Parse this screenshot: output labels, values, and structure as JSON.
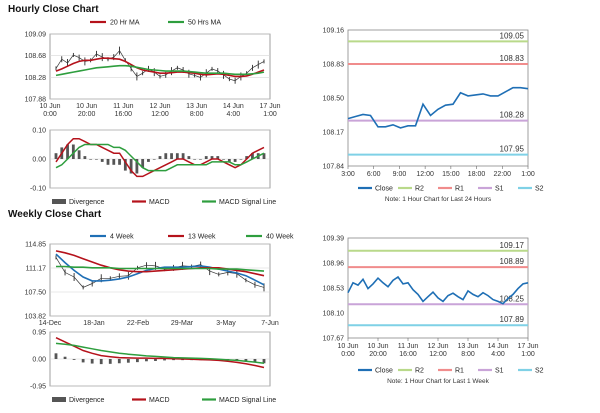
{
  "hourly_title": "Hourly Close Chart",
  "weekly_title": "Weekly Close Chart",
  "colors": {
    "green": "#2e9e3e",
    "red": "#b5121b",
    "blue": "#1f6fb5",
    "r2": "#b9d98a",
    "r1": "#f08c8c",
    "s1": "#c9a4d8",
    "s2": "#7fd1e6",
    "grey": "#777777",
    "dark": "#222222"
  },
  "chart_data": [
    {
      "id": "hourly-price",
      "type": "line",
      "title": "Hourly Close Chart",
      "legend": [
        "20 Hr MA",
        "50 Hrs MA"
      ],
      "yticks": [
        "109.09",
        "108.68",
        "108.28",
        "107.88"
      ],
      "ylim": [
        107.88,
        109.09
      ],
      "xticks": [
        "10 Jun\n0:00",
        "10 Jun\n20:00",
        "11 Jun\n16:00",
        "12 Jun\n12:00",
        "13 Jun\n8:00",
        "14 Jun\n4:00",
        "17 Jun\n1:00"
      ],
      "series": [
        {
          "name": "Close",
          "values": [
            108.45,
            108.62,
            108.55,
            108.7,
            108.65,
            108.58,
            108.6,
            108.72,
            108.66,
            108.62,
            108.66,
            108.78,
            108.6,
            108.45,
            108.3,
            108.36,
            108.44,
            108.38,
            108.3,
            108.33,
            108.4,
            108.46,
            108.42,
            108.35,
            108.32,
            108.28,
            108.36,
            108.44,
            108.4,
            108.33,
            108.25,
            108.22,
            108.3,
            108.36,
            108.46,
            108.52,
            108.58
          ]
        },
        {
          "name": "20 Hr MA",
          "values": [
            108.4,
            108.44,
            108.49,
            108.54,
            108.58,
            108.6,
            108.6,
            108.62,
            108.64,
            108.64,
            108.63,
            108.62,
            108.58,
            108.52,
            108.46,
            108.42,
            108.4,
            108.38,
            108.36,
            108.36,
            108.37,
            108.38,
            108.38,
            108.37,
            108.36,
            108.34,
            108.33,
            108.34,
            108.35,
            108.34,
            108.32,
            108.3,
            108.3,
            108.31,
            108.34,
            108.38,
            108.42
          ]
        },
        {
          "name": "50 Hrs MA",
          "values": [
            108.32,
            108.34,
            108.36,
            108.38,
            108.4,
            108.42,
            108.44,
            108.46,
            108.47,
            108.48,
            108.49,
            108.5,
            108.5,
            108.49,
            108.47,
            108.45,
            108.43,
            108.42,
            108.41,
            108.4,
            108.4,
            108.4,
            108.4,
            108.39,
            108.38,
            108.37,
            108.36,
            108.36,
            108.36,
            108.36,
            108.35,
            108.34,
            108.34,
            108.34,
            108.35,
            108.36,
            108.38
          ]
        }
      ]
    },
    {
      "id": "hourly-macd",
      "type": "line",
      "legend": [
        "Divergence",
        "MACD",
        "MACD Signal Line"
      ],
      "yticks": [
        "0.10",
        "0.00",
        "-0.10"
      ],
      "ylim": [
        -0.1,
        0.1
      ],
      "series": [
        {
          "name": "MACD",
          "values": [
            -0.01,
            0.02,
            0.05,
            0.07,
            0.07,
            0.06,
            0.05,
            0.05,
            0.04,
            0.03,
            0.02,
            0.02,
            -0.01,
            -0.04,
            -0.06,
            -0.06,
            -0.05,
            -0.04,
            -0.03,
            -0.02,
            -0.01,
            0.0,
            0.0,
            -0.01,
            -0.02,
            -0.02,
            -0.01,
            0.0,
            0.0,
            -0.01,
            -0.02,
            -0.03,
            -0.02,
            0.0,
            0.02,
            0.03,
            0.04
          ]
        },
        {
          "name": "MACD Signal Line",
          "values": [
            -0.03,
            -0.02,
            0.0,
            0.02,
            0.04,
            0.05,
            0.05,
            0.05,
            0.05,
            0.05,
            0.04,
            0.04,
            0.03,
            0.01,
            -0.01,
            -0.03,
            -0.04,
            -0.04,
            -0.04,
            -0.04,
            -0.03,
            -0.02,
            -0.02,
            -0.02,
            -0.02,
            -0.02,
            -0.02,
            -0.01,
            -0.01,
            -0.01,
            -0.01,
            -0.02,
            -0.02,
            -0.01,
            0.0,
            0.01,
            0.02
          ]
        }
      ]
    },
    {
      "id": "hourly-24h",
      "type": "line",
      "legend": [
        "Close",
        "R2",
        "R1",
        "S1",
        "S2"
      ],
      "note": "Note: 1 Hour Chart for Last 24 Hours",
      "yticks": [
        "109.16",
        "108.83",
        "108.50",
        "108.17",
        "107.84"
      ],
      "ylim": [
        107.84,
        109.16
      ],
      "xticks": [
        "3:00",
        "6:00",
        "9:00",
        "12:00",
        "15:00",
        "18:00",
        "22:00",
        "1:00"
      ],
      "levels": [
        {
          "name": "R2",
          "value": 109.05,
          "label": "109.05"
        },
        {
          "name": "R1",
          "value": 108.83,
          "label": "108.83"
        },
        {
          "name": "S1",
          "value": 108.28,
          "label": "108.28"
        },
        {
          "name": "S2",
          "value": 107.95,
          "label": "107.95"
        }
      ],
      "close": [
        108.3,
        108.32,
        108.34,
        108.33,
        108.22,
        108.22,
        108.24,
        108.21,
        108.23,
        108.23,
        108.44,
        108.33,
        108.39,
        108.43,
        108.44,
        108.55,
        108.52,
        108.53,
        108.54,
        108.52,
        108.52,
        108.56,
        108.6,
        108.6,
        108.59
      ]
    },
    {
      "id": "weekly-price",
      "type": "line",
      "title": "Weekly Close Chart",
      "legend": [
        "4 Week",
        "13 Week",
        "40 Week"
      ],
      "yticks": [
        "114.85",
        "111.17",
        "107.50",
        "103.82"
      ],
      "ylim": [
        103.82,
        114.85
      ],
      "xticks": [
        "14-Dec",
        "18-Jan",
        "22-Feb",
        "29-Mar",
        "3-May",
        "7-Jun"
      ],
      "series": [
        {
          "name": "Close",
          "values": [
            112.8,
            110.5,
            109.8,
            108.2,
            108.8,
            109.6,
            109.6,
            109.9,
            110.0,
            111.2,
            111.6,
            111.5,
            111.0,
            111.2,
            111.5,
            111.4,
            111.7,
            110.7,
            110.2,
            110.5,
            110.3,
            109.3,
            108.6,
            108.2
          ]
        },
        {
          "name": "4 Week",
          "values": [
            113.3,
            112.0,
            110.8,
            109.8,
            109.2,
            109.2,
            109.3,
            109.5,
            109.8,
            110.3,
            110.8,
            111.1,
            111.3,
            111.3,
            111.3,
            111.4,
            111.5,
            111.3,
            111.0,
            110.7,
            110.4,
            110.0,
            109.3,
            108.6
          ]
        },
        {
          "name": "13 Week",
          "values": [
            113.8,
            113.5,
            113.1,
            112.6,
            112.1,
            111.6,
            111.2,
            110.9,
            110.7,
            110.6,
            110.6,
            110.7,
            110.8,
            110.9,
            111.0,
            111.1,
            111.2,
            111.2,
            111.2,
            111.0,
            110.8,
            110.6,
            110.3,
            110.0
          ]
        },
        {
          "name": "40 Week",
          "values": [
            111.4,
            111.4,
            111.3,
            111.3,
            111.2,
            111.2,
            111.2,
            111.1,
            111.1,
            111.1,
            111.1,
            111.1,
            111.1,
            111.1,
            111.1,
            111.1,
            111.1,
            111.1,
            111.0,
            111.0,
            111.0,
            110.9,
            110.8,
            110.7
          ]
        }
      ]
    },
    {
      "id": "weekly-macd",
      "type": "line",
      "legend": [
        "Divergence",
        "MACD",
        "MACD Signal Line"
      ],
      "yticks": [
        "0.95",
        "0.00",
        "-0.95"
      ],
      "ylim": [
        -0.95,
        0.95
      ],
      "series": [
        {
          "name": "MACD",
          "values": [
            0.75,
            0.6,
            0.45,
            0.3,
            0.2,
            0.12,
            0.08,
            0.05,
            0.04,
            0.03,
            0.03,
            0.02,
            0.02,
            0.01,
            0.0,
            -0.01,
            -0.02,
            -0.03,
            -0.05,
            -0.08,
            -0.12,
            -0.17,
            -0.23,
            -0.3
          ]
        },
        {
          "name": "MACD Signal Line",
          "values": [
            0.55,
            0.52,
            0.48,
            0.42,
            0.36,
            0.3,
            0.25,
            0.2,
            0.17,
            0.14,
            0.11,
            0.09,
            0.07,
            0.05,
            0.04,
            0.03,
            0.02,
            0.01,
            -0.01,
            -0.03,
            -0.05,
            -0.08,
            -0.11,
            -0.15
          ]
        }
      ]
    },
    {
      "id": "weekly-1w",
      "type": "line",
      "legend": [
        "Close",
        "R2",
        "R1",
        "S1",
        "S2"
      ],
      "note": "Note: 1 Hour Chart for Last 1 Week",
      "yticks": [
        "109.39",
        "108.96",
        "108.53",
        "108.10",
        "107.67"
      ],
      "ylim": [
        107.67,
        109.39
      ],
      "xticks": [
        "10 Jun\n0:00",
        "10 Jun\n20:00",
        "11 Jun\n16:00",
        "12 Jun\n12:00",
        "13 Jun\n8:00",
        "14 Jun\n4:00",
        "17 Jun\n1:00"
      ],
      "levels": [
        {
          "name": "R2",
          "value": 109.17,
          "label": "109.17"
        },
        {
          "name": "R1",
          "value": 108.89,
          "label": "108.89"
        },
        {
          "name": "S1",
          "value": 108.25,
          "label": "108.25"
        },
        {
          "name": "S2",
          "value": 107.89,
          "label": "107.89"
        }
      ],
      "close": [
        108.45,
        108.62,
        108.58,
        108.68,
        108.52,
        108.6,
        108.7,
        108.62,
        108.55,
        108.66,
        108.72,
        108.6,
        108.62,
        108.5,
        108.42,
        108.3,
        108.38,
        108.46,
        108.36,
        108.3,
        108.4,
        108.44,
        108.38,
        108.33,
        108.48,
        108.42,
        108.38,
        108.45,
        108.4,
        108.33,
        108.3,
        108.26,
        108.35,
        108.42,
        108.52,
        108.6,
        108.62
      ]
    }
  ]
}
